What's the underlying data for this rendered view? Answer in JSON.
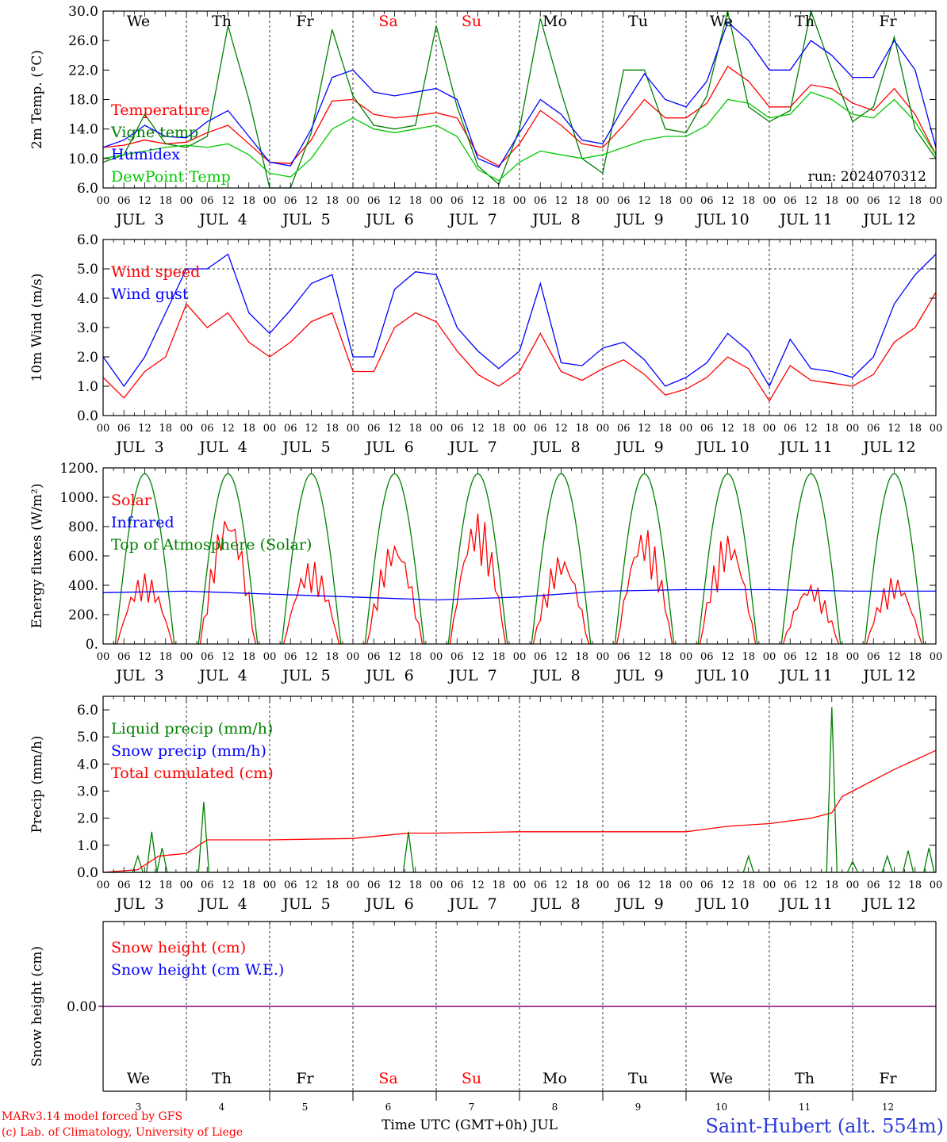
{
  "run_label": "run: 2024070312",
  "days": {
    "weekdays": [
      "We",
      "Th",
      "Fr",
      "Sa",
      "Su",
      "Mo",
      "Tu",
      "We",
      "Th",
      "Fr"
    ],
    "dates": [
      "JUL  3",
      "JUL  4",
      "JUL  5",
      "JUL  6",
      "JUL  7",
      "JUL  8",
      "JUL  9",
      "JUL 10",
      "JUL 11",
      "JUL 12"
    ],
    "day_numbers": [
      "3",
      "4",
      "5",
      "6",
      "7",
      "8",
      "9",
      "10",
      "11",
      "12"
    ]
  },
  "hour_ticks": [
    "00",
    "06",
    "12",
    "18"
  ],
  "hour_tick_end": "00",
  "weekend_color": "#ff0000",
  "colors": {
    "red": "#ff0000",
    "green": "#008000",
    "blue": "#0000ff",
    "lime": "#00c800",
    "purple": "#800080",
    "title_blue": "#2b3bd6"
  },
  "footer": {
    "model_line1": "MARv3.14 model forced by GFS",
    "model_line2": "(c) Lab. of Climatology, University of Liege",
    "xaxis_title": "Time UTC (GMT+0h) JUL",
    "station": "Saint-Hubert (alt. 554m)"
  },
  "chart_data": [
    {
      "type": "line",
      "title": "",
      "ylabel": "2m Temp. (°C)",
      "ylim": [
        6.0,
        30.0
      ],
      "yticks": [
        "6.0",
        "10.0",
        "14.0",
        "18.0",
        "22.0",
        "26.0",
        "30.0"
      ],
      "x_hours": [
        0,
        6,
        12,
        18,
        24,
        30,
        36,
        42,
        48,
        54,
        60,
        66,
        72,
        78,
        84,
        90,
        96,
        102,
        108,
        114,
        120,
        126,
        132,
        138,
        144,
        150,
        156,
        162,
        168,
        174,
        180,
        186,
        192,
        198,
        204,
        210,
        216,
        222,
        228,
        234,
        240
      ],
      "series": [
        {
          "name": "Temperature",
          "color": "red",
          "values": [
            11.5,
            11.8,
            12.5,
            12.0,
            12.2,
            13.5,
            14.5,
            12.0,
            9.5,
            9.3,
            12.5,
            17.8,
            18.0,
            16.0,
            15.5,
            15.8,
            16.2,
            15.5,
            10.5,
            9.0,
            12.0,
            16.5,
            14.5,
            12.0,
            11.5,
            14.5,
            18.0,
            15.5,
            15.5,
            17.5,
            22.5,
            20.5,
            17.0,
            17.0,
            20.0,
            19.5,
            17.5,
            16.5,
            19.5,
            16.0,
            10.5
          ]
        },
        {
          "name": "Vigne temp",
          "color": "green",
          "values": [
            9.5,
            10.5,
            16.0,
            12.0,
            11.5,
            13.0,
            28.0,
            18.0,
            6.0,
            5.5,
            13.5,
            27.5,
            18.5,
            14.5,
            14.0,
            14.5,
            28.0,
            17.0,
            9.0,
            6.5,
            14.0,
            29.0,
            19.0,
            10.0,
            8.0,
            22.0,
            22.0,
            14.0,
            13.5,
            18.5,
            30.0,
            17.0,
            15.0,
            16.5,
            30.0,
            22.0,
            15.0,
            17.0,
            26.5,
            14.0,
            10.0
          ]
        },
        {
          "name": "Humidex",
          "color": "blue",
          "values": [
            11.5,
            12.5,
            14.5,
            13.0,
            12.8,
            15.0,
            16.5,
            13.0,
            9.5,
            9.0,
            14.0,
            21.0,
            22.0,
            19.0,
            18.5,
            19.0,
            19.5,
            18.0,
            10.0,
            8.8,
            13.5,
            18.0,
            16.0,
            12.5,
            12.0,
            17.0,
            21.5,
            18.0,
            17.0,
            20.5,
            28.5,
            26.0,
            22.0,
            22.0,
            26.0,
            24.0,
            21.0,
            21.0,
            26.0,
            22.0,
            11.5
          ]
        },
        {
          "name": "DewPoint Temp",
          "color": "lime",
          "values": [
            10.0,
            10.5,
            11.0,
            11.5,
            11.8,
            11.5,
            12.0,
            10.5,
            8.0,
            7.5,
            10.0,
            14.0,
            15.5,
            14.0,
            13.5,
            14.0,
            14.5,
            13.0,
            8.5,
            7.0,
            9.5,
            11.0,
            10.5,
            10.0,
            10.5,
            11.5,
            12.5,
            13.0,
            13.0,
            14.5,
            18.0,
            17.5,
            15.5,
            16.0,
            19.0,
            18.0,
            16.0,
            15.5,
            18.0,
            15.0,
            10.5
          ]
        }
      ],
      "legend_placement": "left",
      "grid": "vertical day lines"
    },
    {
      "type": "line",
      "title": "",
      "ylabel": "10m Wind (m/s)",
      "ylim": [
        0.0,
        6.0
      ],
      "yticks": [
        "0.0",
        "1.0",
        "2.0",
        "3.0",
        "4.0",
        "5.0",
        "6.0"
      ],
      "x_hours": [
        0,
        6,
        12,
        18,
        24,
        30,
        36,
        42,
        48,
        54,
        60,
        66,
        72,
        78,
        84,
        90,
        96,
        102,
        108,
        114,
        120,
        126,
        132,
        138,
        144,
        150,
        156,
        162,
        168,
        174,
        180,
        186,
        192,
        198,
        204,
        210,
        216,
        222,
        228,
        234,
        240
      ],
      "series": [
        {
          "name": "Wind speed",
          "color": "red",
          "values": [
            1.3,
            0.6,
            1.5,
            2.0,
            3.8,
            3.0,
            3.5,
            2.5,
            2.0,
            2.5,
            3.2,
            3.5,
            1.5,
            1.5,
            3.0,
            3.5,
            3.2,
            2.2,
            1.4,
            1.0,
            1.5,
            2.8,
            1.5,
            1.2,
            1.6,
            1.9,
            1.4,
            0.7,
            0.9,
            1.3,
            2.0,
            1.6,
            0.5,
            1.7,
            1.2,
            1.1,
            1.0,
            1.4,
            2.5,
            3.0,
            4.2
          ]
        },
        {
          "name": "Wind gust",
          "color": "blue",
          "values": [
            2.0,
            1.0,
            2.0,
            3.5,
            5.0,
            5.0,
            5.5,
            3.5,
            2.8,
            3.6,
            4.5,
            4.8,
            2.0,
            2.0,
            4.3,
            4.9,
            4.8,
            3.0,
            2.2,
            1.6,
            2.2,
            4.5,
            1.8,
            1.7,
            2.3,
            2.5,
            1.9,
            1.0,
            1.3,
            1.8,
            2.8,
            2.2,
            1.0,
            2.6,
            1.6,
            1.5,
            1.3,
            2.0,
            3.8,
            4.8,
            5.5
          ]
        }
      ],
      "reference_line": 5.0,
      "legend_placement": "left"
    },
    {
      "type": "line",
      "title": "",
      "ylabel": "Energy fluxes (W/m²)",
      "ylim": [
        0,
        1200
      ],
      "yticks": [
        "0.",
        "200.",
        "400.",
        "600.",
        "800.",
        "1000.",
        "1200."
      ],
      "series": [
        {
          "name": "Solar",
          "color": "red",
          "daily_peaks": [
            480,
            920,
            570,
            720,
            900,
            620,
            800,
            760,
            420,
            460
          ]
        },
        {
          "name": "Infrared",
          "color": "blue",
          "values_per_day": [
            350,
            360,
            340,
            320,
            300,
            320,
            360,
            370,
            370,
            360,
            360
          ]
        },
        {
          "name": "Top of Atmosphere (Solar)",
          "color": "green",
          "daily_peak": 1160
        }
      ],
      "legend_placement": "left"
    },
    {
      "type": "line",
      "title": "",
      "ylabel": "Precip (mm/h)",
      "ylim": [
        0.0,
        6.5
      ],
      "yticks": [
        "0.0",
        "1.0",
        "2.0",
        "3.0",
        "4.0",
        "5.0",
        "6.0"
      ],
      "series": [
        {
          "name": "Liquid precip (mm/h)",
          "color": "green",
          "spikes": [
            [
              10,
              0.6
            ],
            [
              14,
              1.5
            ],
            [
              17,
              0.9
            ],
            [
              29,
              2.6
            ],
            [
              88,
              1.5
            ],
            [
              186,
              0.6
            ],
            [
              210,
              6.1
            ],
            [
              216,
              0.4
            ],
            [
              226,
              0.6
            ],
            [
              232,
              0.8
            ],
            [
              238,
              0.9
            ]
          ]
        },
        {
          "name": "Snow precip (mm/h)",
          "color": "blue",
          "values": [
            0
          ]
        },
        {
          "name": "Total cumulated (cm)",
          "color": "red",
          "x_hours": [
            0,
            10,
            16,
            20,
            24,
            30,
            48,
            72,
            88,
            96,
            120,
            144,
            168,
            180,
            192,
            204,
            210,
            213,
            216,
            228,
            240
          ],
          "values": [
            0,
            0.1,
            0.6,
            0.65,
            0.7,
            1.2,
            1.2,
            1.25,
            1.45,
            1.45,
            1.5,
            1.5,
            1.5,
            1.7,
            1.8,
            2.0,
            2.2,
            2.8,
            3.0,
            3.8,
            4.5
          ]
        }
      ],
      "legend_placement": "left"
    },
    {
      "type": "line",
      "title": "",
      "ylabel": "Snow height (cm)",
      "yticks": [
        "0.00"
      ],
      "series": [
        {
          "name": "Snow height (cm)",
          "color": "red",
          "values": [
            0.0
          ]
        },
        {
          "name": "Snow height (cm W.E.)",
          "color": "blue",
          "values": [
            0.0
          ]
        }
      ],
      "legend_placement": "left"
    }
  ]
}
